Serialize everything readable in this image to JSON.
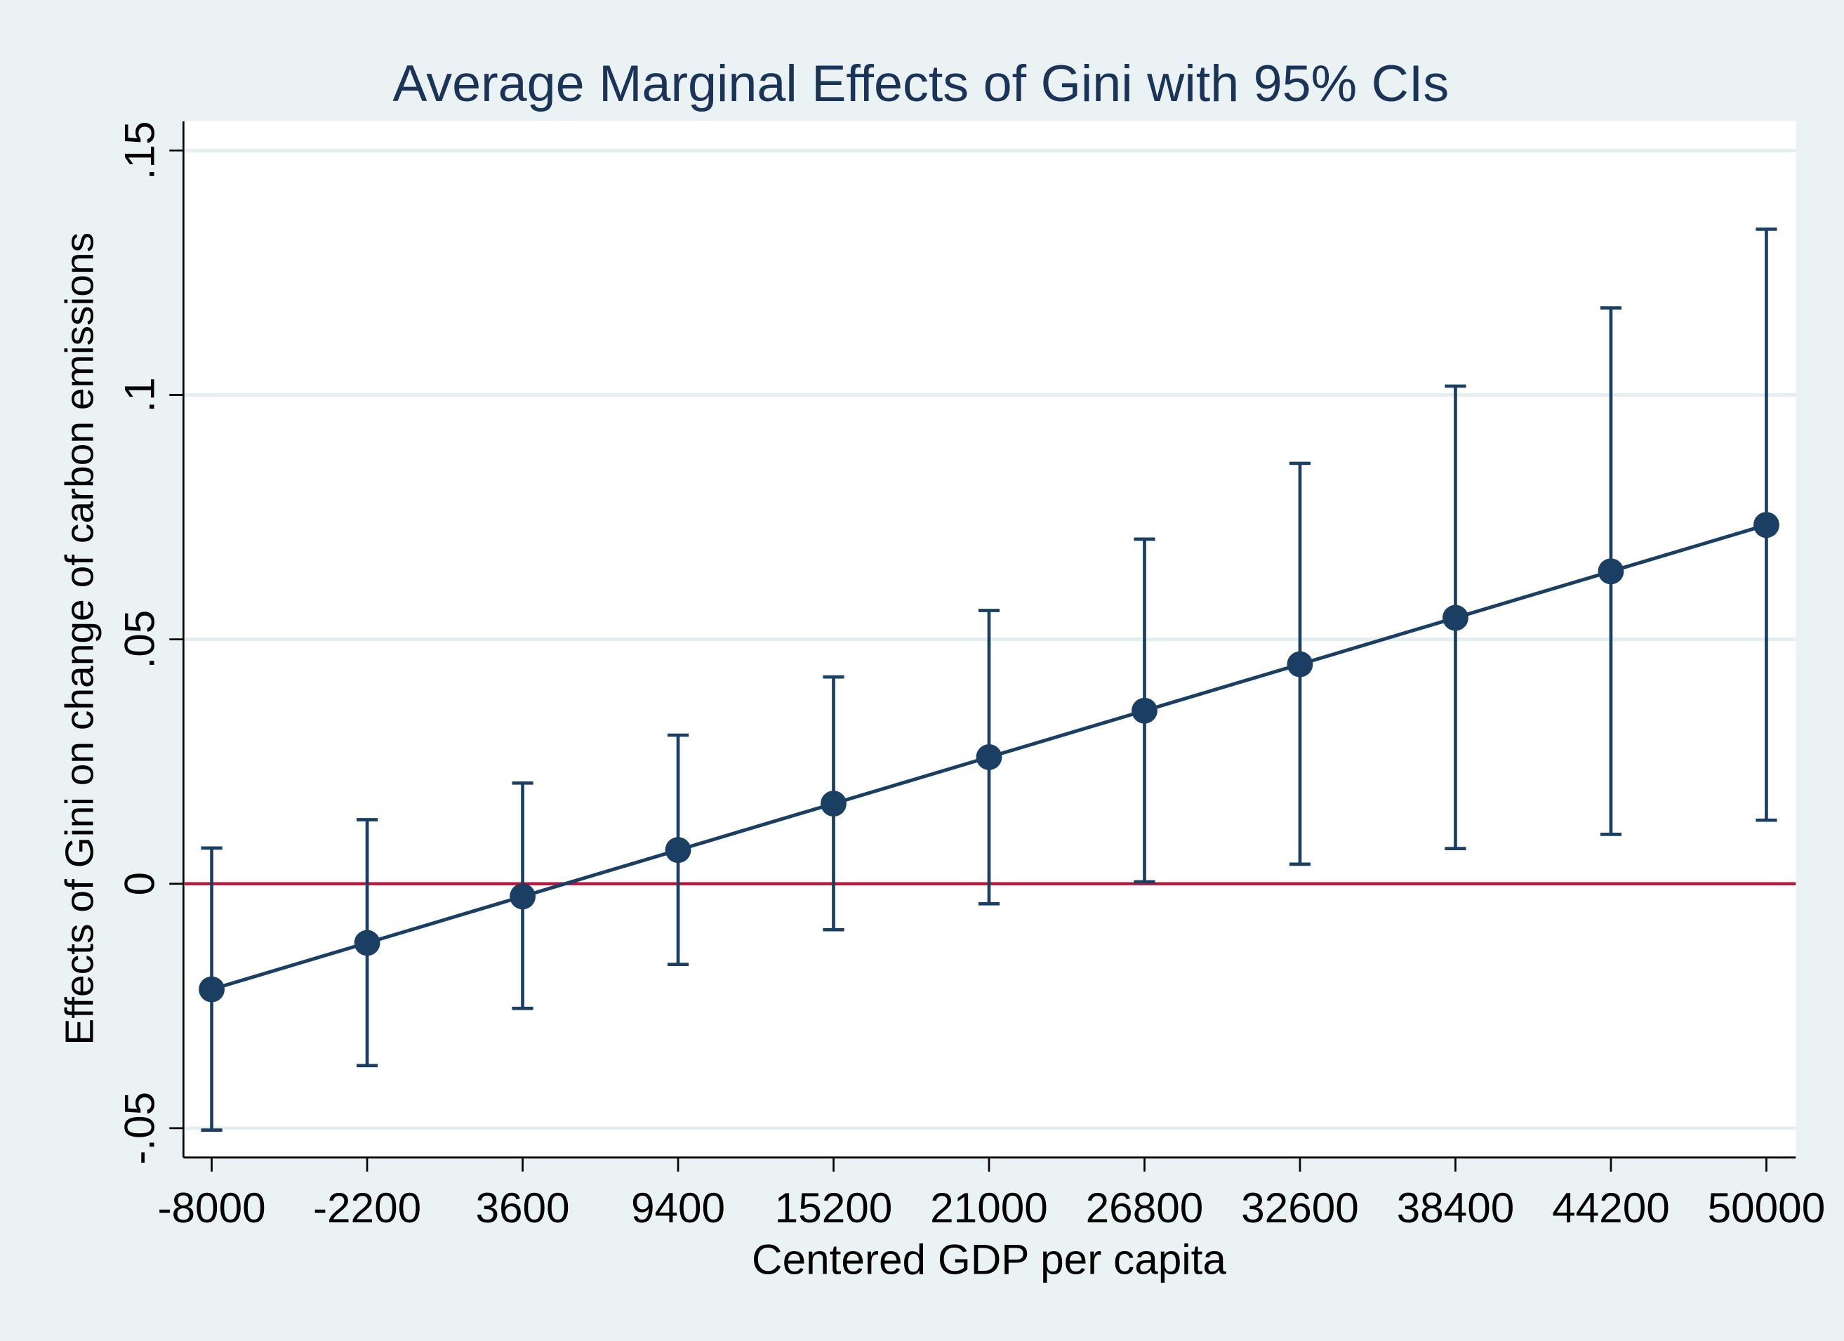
{
  "chart_data": {
    "type": "scatter",
    "title": "Average Marginal Effects of Gini with 95% CIs",
    "xlabel": "Centered GDP per capita",
    "ylabel": "Effects of Gini on change of carbon emissions",
    "x_ticks": [
      "-8000",
      "-2200",
      "3600",
      "9400",
      "15200",
      "21000",
      "26800",
      "32600",
      "38400",
      "44200",
      "50000"
    ],
    "y_ticks": [
      {
        "value": -0.05,
        "label": "-.05"
      },
      {
        "value": 0,
        "label": "0"
      },
      {
        "value": 0.05,
        "label": ".05"
      },
      {
        "value": 0.1,
        "label": ".1"
      },
      {
        "value": 0.15,
        "label": ".15"
      }
    ],
    "ylim": [
      -0.056,
      0.156
    ],
    "grid": true,
    "reference_line": {
      "y": 0,
      "color": "#b5163b"
    },
    "series": [
      {
        "x": [
          -8000,
          -2200,
          3600,
          9400,
          15200,
          21000,
          26800,
          32600,
          38400,
          44200,
          50000
        ],
        "estimate": [
          -0.0216,
          -0.0121,
          -0.0026,
          0.0069,
          0.0164,
          0.0259,
          0.0354,
          0.0449,
          0.0544,
          0.0639,
          0.0734
        ],
        "ci_lower": [
          -0.0504,
          -0.0372,
          -0.0255,
          -0.0165,
          -0.0094,
          -0.0041,
          0.0004,
          0.004,
          0.0072,
          0.0101,
          0.013
        ],
        "ci_upper": [
          0.0073,
          0.0131,
          0.0206,
          0.0304,
          0.0423,
          0.0559,
          0.0705,
          0.086,
          0.1018,
          0.1178,
          0.1339
        ]
      }
    ],
    "colors": {
      "series": "#1a3f63",
      "reference": "#b5163b",
      "plot_background": "#ffffff",
      "page_background": "#eaf2f3",
      "gridline": "#e5eeee",
      "text": "#000000",
      "title": "#1a3357"
    }
  }
}
